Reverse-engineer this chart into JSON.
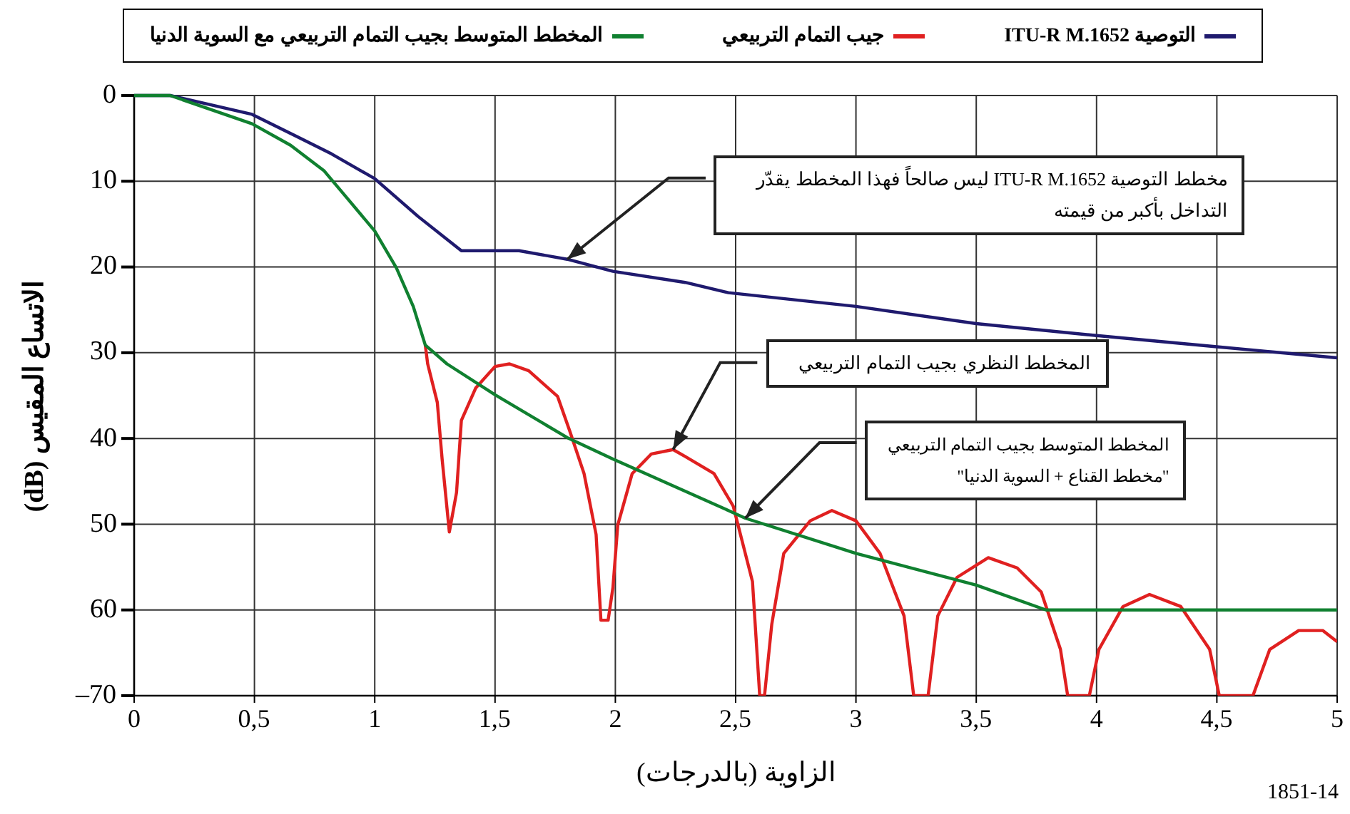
{
  "chart_data": {
    "type": "line",
    "xlabel": "الزاوية (بالدرجات)",
    "ylabel": "الاتساع المقيس (dB)",
    "xlim": [
      0,
      5
    ],
    "ylim": [
      -70,
      0
    ],
    "xticks": [
      0,
      {
        "value": 0.5,
        "label": "0,5"
      },
      1,
      {
        "value": 1.5,
        "label": "1,5"
      },
      2,
      {
        "value": 2.5,
        "label": "2,5"
      },
      3,
      {
        "value": 3.5,
        "label": "3,5"
      },
      4,
      {
        "value": 4.5,
        "label": "4,5"
      },
      5
    ],
    "yticks": [
      0,
      {
        "value": -10,
        "label": "10"
      },
      {
        "value": -20,
        "label": "20"
      },
      {
        "value": -30,
        "label": "30"
      },
      {
        "value": -40,
        "label": "40"
      },
      {
        "value": -50,
        "label": "50"
      },
      {
        "value": -60,
        "label": "60"
      },
      {
        "value": -70,
        "label": "–70"
      }
    ],
    "grid": true,
    "legend": "top",
    "line_style": "solid",
    "marker": "none",
    "series": [
      {
        "name": "التوصية ITU-R M.1652",
        "color": "#1f1a6e",
        "x": [
          0,
          0.15,
          0.49,
          0.67,
          0.82,
          1.0,
          1.18,
          1.36,
          1.6,
          1.8,
          1.99,
          2.29,
          2.47,
          3.0,
          3.5,
          4.0,
          4.5,
          5.0
        ],
        "values": [
          0,
          0,
          -2.2,
          -4.7,
          -6.8,
          -9.7,
          -14.1,
          -18.1,
          -18.1,
          -19.1,
          -20.5,
          -21.8,
          -23,
          -24.6,
          -26.6,
          -28,
          -29.3,
          -30.6
        ]
      },
      {
        "name": "جيب التمام التربيعي",
        "color": "#e02020",
        "x": [
          1.21,
          1.22,
          1.26,
          1.28,
          1.31,
          1.34,
          1.36,
          1.42,
          1.5,
          1.56,
          1.64,
          1.76,
          1.81,
          1.87,
          1.92,
          1.94,
          1.97,
          1.99,
          2.01,
          2.07,
          2.15,
          2.24,
          2.29,
          2.41,
          2.49,
          2.57,
          2.6,
          2.62,
          2.65,
          2.7,
          2.81,
          2.9,
          3.0,
          3.1,
          3.2,
          3.24,
          3.3,
          3.34,
          3.42,
          3.55,
          3.67,
          3.77,
          3.85,
          3.88,
          3.97,
          4.01,
          4.11,
          4.22,
          4.35,
          4.47,
          4.51,
          4.65,
          4.72,
          4.84,
          4.94,
          5.0
        ],
        "values": [
          -29.1,
          -31.3,
          -35.8,
          -42.4,
          -50.9,
          -46.3,
          -37.9,
          -34.1,
          -31.6,
          -31.3,
          -32.1,
          -35.1,
          -39.1,
          -44.1,
          -51.2,
          -61.2,
          -61.2,
          -57.4,
          -50.1,
          -44.1,
          -41.8,
          -41.3,
          -42.1,
          -44.1,
          -47.9,
          -56.7,
          -70,
          -70,
          -61.7,
          -53.4,
          -49.6,
          -48.4,
          -49.6,
          -53.4,
          -60.7,
          -70,
          -70,
          -60.7,
          -56.2,
          -53.9,
          -55.1,
          -57.9,
          -64.6,
          -70,
          -70,
          -64.6,
          -59.6,
          -58.2,
          -59.6,
          -64.6,
          -70,
          -70,
          -64.6,
          -62.4,
          -62.4,
          -63.7
        ]
      },
      {
        "name": "المخطط المتوسط بجيب التمام التربيعي مع السوية الدنيا",
        "color": "#108030",
        "x": [
          0,
          0.15,
          0.49,
          0.65,
          0.79,
          0.88,
          1.0,
          1.09,
          1.16,
          1.21,
          1.3,
          1.5,
          1.8,
          1.99,
          2.47,
          2.54,
          3.0,
          3.5,
          3.79,
          5.0
        ],
        "values": [
          0,
          0,
          -3.3,
          -5.8,
          -8.8,
          -11.8,
          -15.8,
          -20.1,
          -24.6,
          -29.1,
          -31.3,
          -34.9,
          -39.9,
          -42.4,
          -48.4,
          -49.3,
          -53.4,
          -57.1,
          -60,
          -60
        ]
      }
    ],
    "annotations": [
      "مخطط التوصية ITU-R M.1652 ليس صالحاً فهذا المخطط يقدّر التداخل بأكبر من قيمته",
      "المخطط النظري بجيب التمام التربيعي",
      "المخطط المتوسط بجيب التمام التربيعي \"مخطط القناع + السوية الدنيا\"",
      "1851-14"
    ]
  }
}
